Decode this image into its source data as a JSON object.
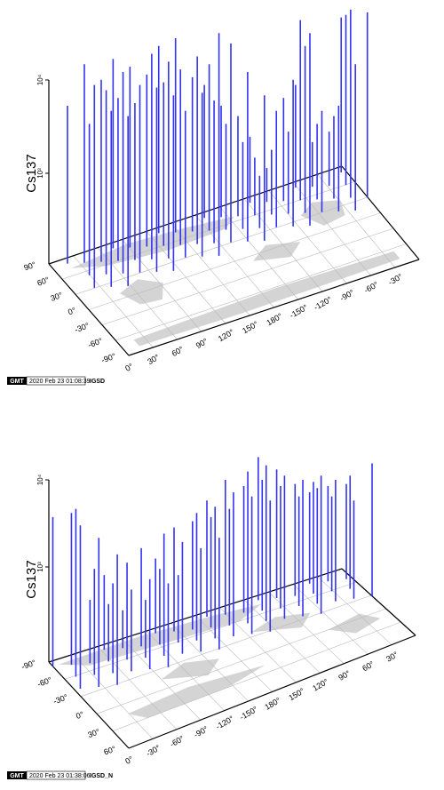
{
  "chart_data": [
    {
      "type": "bar3d",
      "ylabel": "Cs137",
      "z_ticks": [
        "10⁴",
        "10³"
      ],
      "lat_ticks": [
        "90°",
        "60°",
        "30°",
        "0°",
        "-30°",
        "-60°",
        "-90°"
      ],
      "lon_ticks": [
        "0°",
        "30°",
        "60°",
        "90°",
        "120°",
        "150°",
        "180°",
        "-150°",
        "-120°",
        "-90°",
        "-60°",
        "-30°"
      ],
      "stamp": {
        "logo": "GMT",
        "timestamp": "2020 Feb 23 01:08:39",
        "label": "IGSD"
      },
      "series_color": "#3333ee",
      "bar_heights": [
        0.62,
        0.7,
        0.55,
        0.78,
        0.6,
        0.68,
        0.72,
        0.58,
        0.75,
        0.65,
        0.8,
        0.7,
        0.63,
        0.77,
        0.69,
        0.82,
        0.74,
        0.66,
        0.79,
        0.71,
        0.85,
        0.6,
        0.76,
        0.88,
        0.67,
        0.81,
        0.73,
        0.9,
        0.64,
        0.78,
        0.7,
        0.86,
        0.55,
        0.62,
        0.75,
        0.48,
        0.58,
        0.66,
        0.35,
        0.42,
        0.5,
        0.6,
        0.45,
        0.38,
        0.72,
        0.52,
        0.65,
        0.9,
        0.85,
        0.95,
        0.7,
        0.6,
        0.55,
        0.48,
        0.62,
        0.58,
        0.52,
        0.78,
        0.99,
        0.97,
        0.96,
        0.98
      ]
    },
    {
      "type": "bar3d",
      "ylabel": "Cs137",
      "z_ticks": [
        "10⁴",
        "10³"
      ],
      "lat_ticks": [
        "-90°",
        "-60°",
        "-30°",
        "0°",
        "30°",
        "60°"
      ],
      "lon_ticks": [
        "0°",
        "-30°",
        "-60°",
        "-90°",
        "-120°",
        "-150°",
        "180°",
        "150°",
        "120°",
        "90°",
        "60°",
        "30°"
      ],
      "stamp": {
        "logo": "GMT",
        "timestamp": "2020 Feb 23 01:38:06",
        "label": "IGSD_N"
      },
      "series_color": "#3333ee",
      "bar_heights": [
        0.7,
        0.66,
        0.74,
        0.72,
        0.6,
        0.45,
        0.3,
        0.52,
        0.38,
        0.28,
        0.42,
        0.35,
        0.48,
        0.25,
        0.4,
        0.3,
        0.55,
        0.38,
        0.62,
        0.45,
        0.5,
        0.58,
        0.42,
        0.65,
        0.55,
        0.72,
        0.68,
        0.6,
        0.75,
        0.7,
        0.78,
        0.82,
        0.74,
        0.88,
        0.8,
        0.92,
        0.85,
        0.78,
        0.95,
        0.88,
        0.99,
        0.9,
        0.85,
        0.93,
        0.88,
        0.8,
        0.86,
        0.9,
        0.84,
        0.87,
        0.82,
        0.88,
        0.8,
        0.85,
        0.78,
        0.9,
        0.86,
        0.96
      ]
    }
  ]
}
